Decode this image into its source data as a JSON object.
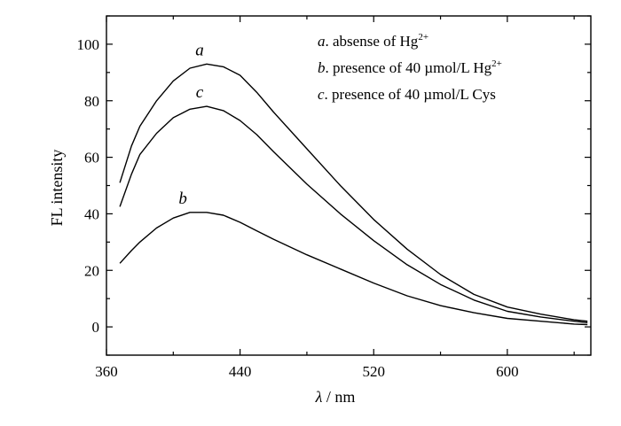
{
  "chart_data": {
    "type": "line",
    "xlabel_symbol": "λ",
    "xlabel_unit": " / nm",
    "ylabel": "FL intensity",
    "xlim": [
      360,
      650
    ],
    "ylim": [
      -10,
      110
    ],
    "xticks": [
      360,
      440,
      520,
      600
    ],
    "yticks": [
      0,
      20,
      40,
      60,
      80,
      100
    ],
    "grid": false,
    "legend": {
      "placement": "top-right",
      "entries": [
        {
          "key": "a",
          "text": ". absense of Hg",
          "sup": "2+"
        },
        {
          "key": "b",
          "text": ". presence of 40  µmol/L Hg",
          "sup": "2+"
        },
        {
          "key": "c",
          "text": ". presence of 40  µmol/L Cys",
          "sup": ""
        }
      ]
    },
    "series": [
      {
        "name": "a",
        "x": [
          368,
          375,
          380,
          390,
          400,
          410,
          420,
          430,
          440,
          450,
          460,
          480,
          500,
          520,
          540,
          560,
          580,
          600,
          620,
          640,
          648
        ],
        "y": [
          51,
          64,
          71,
          80,
          87,
          91.5,
          93,
          92,
          89,
          83,
          76,
          63,
          50,
          38,
          27.5,
          18.5,
          11.5,
          7,
          4.5,
          2.5,
          2
        ]
      },
      {
        "name": "b",
        "x": [
          368,
          375,
          380,
          390,
          400,
          410,
          420,
          430,
          440,
          450,
          460,
          480,
          500,
          520,
          540,
          560,
          580,
          600,
          620,
          640,
          648
        ],
        "y": [
          22.5,
          27,
          30,
          35,
          38.5,
          40.5,
          40.5,
          39.5,
          37,
          34,
          31,
          25.5,
          20.5,
          15.5,
          11,
          7.5,
          5,
          3,
          2,
          1,
          0.8
        ]
      },
      {
        "name": "c",
        "x": [
          368,
          375,
          380,
          390,
          400,
          410,
          420,
          430,
          440,
          450,
          460,
          480,
          500,
          520,
          540,
          560,
          580,
          600,
          620,
          640,
          648
        ],
        "y": [
          42.5,
          54,
          61,
          68.5,
          74,
          77,
          78,
          76.5,
          73,
          68,
          62,
          50.5,
          40,
          30.5,
          22,
          15,
          9.5,
          5.5,
          3.5,
          2,
          1.5
        ]
      }
    ]
  }
}
